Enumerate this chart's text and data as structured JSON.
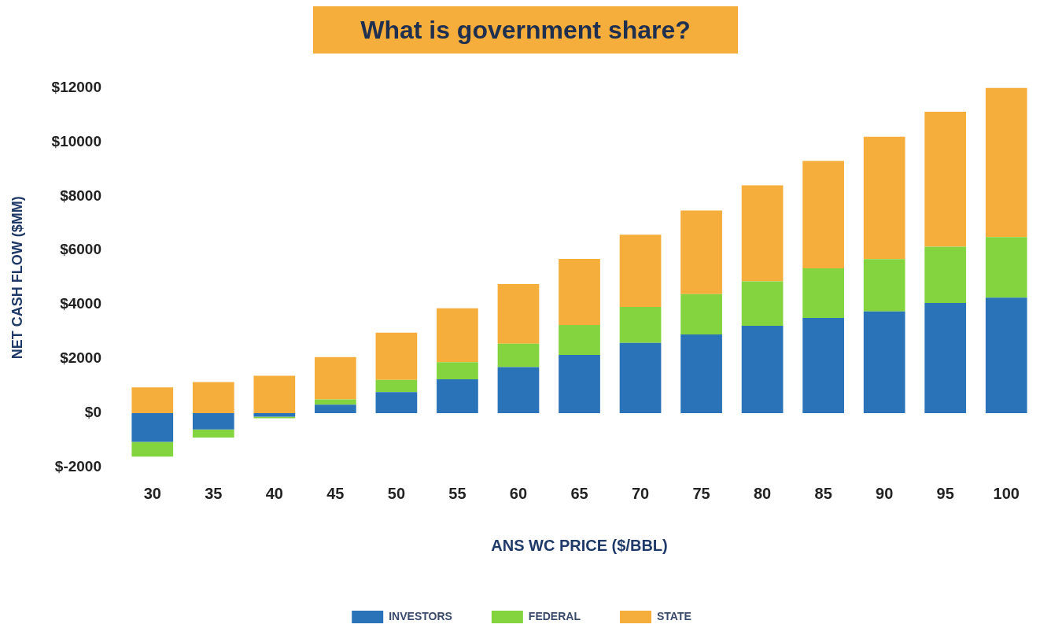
{
  "chart_data": {
    "type": "bar",
    "title": "What is government share?",
    "xlabel": "ANS WC PRICE ($/BBL)",
    "ylabel": "NET CASH FLOW ($MM)",
    "categories": [
      "30",
      "35",
      "40",
      "45",
      "50",
      "55",
      "60",
      "65",
      "70",
      "75",
      "80",
      "85",
      "90",
      "95",
      "100"
    ],
    "stacked": true,
    "series": [
      {
        "name": "INVESTORS",
        "color": "#2b73b8",
        "values": [
          -1060,
          -600,
          -130,
          310,
          780,
          1250,
          1700,
          2150,
          2590,
          2900,
          3220,
          3510,
          3750,
          4060,
          4260
        ]
      },
      {
        "name": "FEDERAL",
        "color": "#84d440",
        "values": [
          -540,
          -300,
          -60,
          200,
          450,
          630,
          860,
          1100,
          1330,
          1490,
          1640,
          1830,
          1930,
          2080,
          2230
        ]
      },
      {
        "name": "STATE",
        "color": "#f5ad3c",
        "values": [
          950,
          1150,
          1380,
          1560,
          1740,
          1990,
          2200,
          2440,
          2660,
          3080,
          3540,
          3960,
          4510,
          4970,
          5510
        ]
      }
    ],
    "ylim": [
      -2000,
      12000
    ],
    "yticks": [
      {
        "value": -2000,
        "label": "$-2000"
      },
      {
        "value": 0,
        "label": "$0"
      },
      {
        "value": 2000,
        "label": "$2000"
      },
      {
        "value": 4000,
        "label": "$4000"
      },
      {
        "value": 6000,
        "label": "$6000"
      },
      {
        "value": 8000,
        "label": "$8000"
      },
      {
        "value": 10000,
        "label": "$10000"
      },
      {
        "value": 12000,
        "label": "$12000"
      }
    ],
    "grid": false,
    "legend": "bottom"
  }
}
